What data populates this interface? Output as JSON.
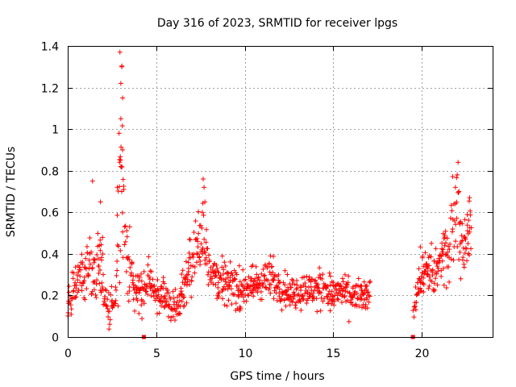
{
  "chart_data": {
    "type": "scatter",
    "title": "Day 316 of 2023, SRMTID for receiver lpgs",
    "xlabel": "GPS time / hours",
    "ylabel": "SRMTID / TECUs",
    "xlim": [
      0,
      24
    ],
    "ylim": [
      0,
      1.4
    ],
    "xticks": [
      0,
      5,
      10,
      15,
      20
    ],
    "yticks": [
      0,
      0.2,
      0.4,
      0.6,
      0.8,
      1,
      1.2,
      1.4
    ],
    "xtick_labels": [
      "0",
      "5",
      "10",
      "15",
      "20"
    ],
    "ytick_labels": [
      "0",
      "0.2",
      "0.4",
      "0.6",
      "0.8",
      "1",
      "1.2",
      "1.4"
    ],
    "grid": true,
    "marker": "+",
    "color": "#ff0000",
    "gap_markers_x": [
      4.3,
      19.5
    ],
    "series": [
      {
        "name": "SRMTID",
        "profile": [
          [
            0.0,
            0.17,
            0.06
          ],
          [
            0.3,
            0.22,
            0.07
          ],
          [
            0.6,
            0.27,
            0.08
          ],
          [
            0.9,
            0.32,
            0.08
          ],
          [
            1.2,
            0.33,
            0.1
          ],
          [
            1.5,
            0.22,
            0.14
          ],
          [
            1.7,
            0.32,
            0.12
          ],
          [
            1.9,
            0.36,
            0.14
          ],
          [
            2.1,
            0.18,
            0.08
          ],
          [
            2.4,
            0.13,
            0.06
          ],
          [
            2.7,
            0.15,
            0.07
          ],
          [
            2.9,
            0.5,
            0.3
          ],
          [
            3.05,
            0.95,
            0.35
          ],
          [
            3.2,
            0.45,
            0.2
          ],
          [
            3.5,
            0.3,
            0.09
          ],
          [
            3.8,
            0.25,
            0.08
          ],
          [
            4.1,
            0.22,
            0.07
          ],
          [
            4.5,
            0.24,
            0.08
          ],
          [
            4.8,
            0.25,
            0.08
          ],
          [
            5.1,
            0.2,
            0.06
          ],
          [
            5.5,
            0.18,
            0.06
          ],
          [
            5.9,
            0.15,
            0.05
          ],
          [
            6.3,
            0.17,
            0.05
          ],
          [
            6.7,
            0.3,
            0.08
          ],
          [
            7.1,
            0.38,
            0.09
          ],
          [
            7.4,
            0.45,
            0.1
          ],
          [
            7.7,
            0.5,
            0.15
          ],
          [
            8.0,
            0.35,
            0.08
          ],
          [
            8.5,
            0.28,
            0.07
          ],
          [
            9.0,
            0.26,
            0.07
          ],
          [
            9.5,
            0.24,
            0.07
          ],
          [
            10.0,
            0.22,
            0.06
          ],
          [
            10.5,
            0.25,
            0.07
          ],
          [
            11.0,
            0.27,
            0.07
          ],
          [
            11.5,
            0.28,
            0.07
          ],
          [
            12.0,
            0.25,
            0.07
          ],
          [
            12.5,
            0.22,
            0.06
          ],
          [
            13.0,
            0.21,
            0.06
          ],
          [
            13.5,
            0.23,
            0.06
          ],
          [
            14.0,
            0.22,
            0.06
          ],
          [
            14.5,
            0.24,
            0.07
          ],
          [
            15.0,
            0.2,
            0.06
          ],
          [
            15.5,
            0.22,
            0.06
          ],
          [
            16.0,
            0.18,
            0.06
          ],
          [
            16.5,
            0.2,
            0.06
          ],
          [
            17.0,
            0.19,
            0.05
          ],
          [
            17.1,
            0.19,
            0.05
          ],
          [
            19.3,
            null,
            null
          ],
          [
            19.5,
            0.15,
            0.06
          ],
          [
            19.8,
            0.28,
            0.08
          ],
          [
            20.1,
            0.32,
            0.08
          ],
          [
            20.5,
            0.3,
            0.09
          ],
          [
            20.9,
            0.32,
            0.1
          ],
          [
            21.2,
            0.38,
            0.1
          ],
          [
            21.5,
            0.45,
            0.12
          ],
          [
            21.8,
            0.55,
            0.14
          ],
          [
            22.0,
            0.65,
            0.15
          ],
          [
            22.2,
            0.45,
            0.12
          ],
          [
            22.5,
            0.48,
            0.1
          ],
          [
            22.8,
            0.52,
            0.1
          ]
        ],
        "spikes": [
          [
            1.4,
            0.75
          ],
          [
            1.85,
            0.65
          ],
          [
            2.95,
            1.37
          ],
          [
            3.05,
            1.3
          ],
          [
            3.0,
            1.22
          ],
          [
            3.1,
            1.15
          ],
          [
            3.0,
            1.05
          ],
          [
            2.9,
            0.98
          ],
          [
            3.1,
            0.9
          ],
          [
            3.0,
            0.82
          ],
          [
            3.05,
            0.7
          ],
          [
            3.5,
            0.53
          ],
          [
            2.8,
            0.72
          ],
          [
            7.65,
            0.76
          ],
          [
            7.7,
            0.72
          ],
          [
            7.75,
            0.65
          ],
          [
            7.6,
            0.6
          ],
          [
            22.05,
            0.84
          ],
          [
            22.0,
            0.78
          ],
          [
            21.9,
            0.72
          ],
          [
            22.1,
            0.7
          ],
          [
            22.7,
            0.67
          ],
          [
            22.2,
            0.28
          ]
        ]
      }
    ]
  }
}
